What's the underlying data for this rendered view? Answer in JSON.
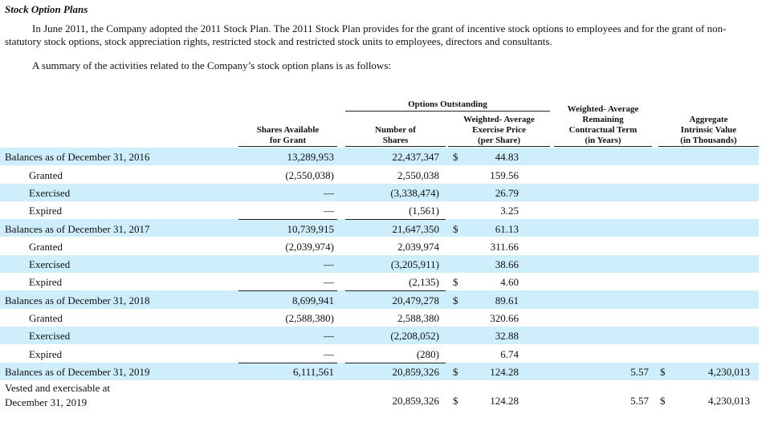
{
  "title": "Stock Option Plans",
  "paragraphs": [
    "In June 2011, the Company adopted the 2011 Stock Plan. The 2011 Stock Plan provides for the grant of incentive stock options to employees and for the grant of non-statutory stock options, stock appreciation rights, restricted stock and restricted stock units to employees, directors and consultants.",
    "A summary of the activities related to the Company’s stock option plans is as follows:"
  ],
  "table": {
    "group_header": "Options Outstanding",
    "columns": {
      "available": [
        "Shares Available",
        "for Grant"
      ],
      "shares": [
        "Number of",
        "Shares"
      ],
      "price": [
        "Weighted- Average",
        "Exercise Price",
        "(per Share)"
      ],
      "term": [
        "Weighted- Average",
        "Remaining",
        "Contractual Term",
        "(in Years)"
      ],
      "value": [
        "Aggregate",
        "Intrinsic Value",
        "(in Thousands)"
      ]
    },
    "sections": [
      {
        "balance": {
          "label": "Balances as of December 31, 2016",
          "available": "13,289,953",
          "shares": "22,437,347",
          "price_symbol": "$",
          "price": "44.83"
        },
        "activities": [
          {
            "label": "Granted",
            "available": "(2,550,038)",
            "shares": "2,550,038",
            "price": "159.56"
          },
          {
            "label": "Exercised",
            "available": "—",
            "shares": "(3,338,474)",
            "price": "26.79"
          },
          {
            "label": "Expired",
            "available": "—",
            "shares": "(1,561)",
            "price": "3.25"
          }
        ]
      },
      {
        "balance": {
          "label": "Balances as of December 31, 2017",
          "available": "10,739,915",
          "shares": "21,647,350",
          "price_symbol": "$",
          "price": "61.13"
        },
        "activities": [
          {
            "label": "Granted",
            "available": "(2,039,974)",
            "shares": "2,039,974",
            "price": "311.66"
          },
          {
            "label": "Exercised",
            "available": "—",
            "shares": "(3,205,911)",
            "price": "38.66"
          },
          {
            "label": "Expired",
            "available": "—",
            "shares": "(2,135)",
            "price_symbol": "$",
            "price": "4.60"
          }
        ]
      },
      {
        "balance": {
          "label": "Balances as of December 31, 2018",
          "available": "8,699,941",
          "shares": "20,479,278",
          "price_symbol": "$",
          "price": "89.61"
        },
        "activities": [
          {
            "label": "Granted",
            "available": "(2,588,380)",
            "shares": "2,588,380",
            "price": "320.66"
          },
          {
            "label": "Exercised",
            "available": "—",
            "shares": "(2,208,052)",
            "price": "32.88"
          },
          {
            "label": "Expired",
            "available": "—",
            "shares": "(280)",
            "price": "6.74"
          }
        ]
      },
      {
        "balance": {
          "label": "Balances as of December 31, 2019",
          "available": "6,111,561",
          "shares": "20,859,326",
          "price_symbol": "$",
          "price": "124.28",
          "term": "5.57",
          "value_symbol": "$",
          "value": "4,230,013"
        },
        "activities": []
      }
    ],
    "vested": {
      "label": "Vested and exercisable at December 31, 2019",
      "shares": "20,859,326",
      "price_symbol": "$",
      "price": "124.28",
      "term": "5.57",
      "value_symbol": "$",
      "value": "4,230,013"
    }
  }
}
